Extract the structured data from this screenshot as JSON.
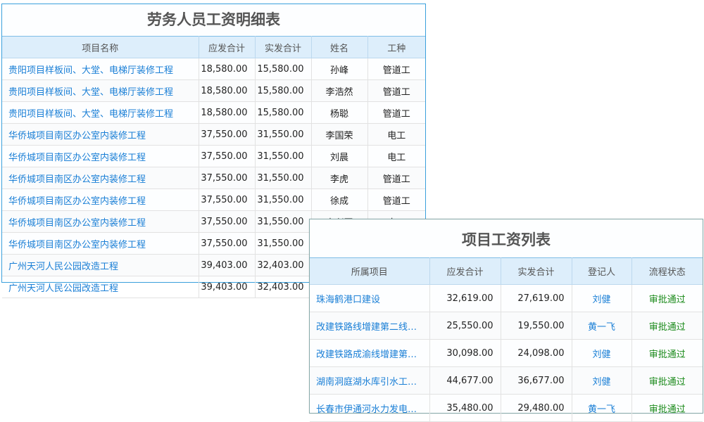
{
  "labor_table": {
    "title": "劳务人员工资明细表",
    "headers": [
      "项目名称",
      "应发合计",
      "实发合计",
      "姓名",
      "工种"
    ],
    "rows": [
      [
        "贵阳项目样板间、大堂、电梯厅装修工程",
        "18,580.00",
        "15,580.00",
        "孙峰",
        "管道工"
      ],
      [
        "贵阳项目样板间、大堂、电梯厅装修工程",
        "18,580.00",
        "15,580.00",
        "李浩然",
        "管道工"
      ],
      [
        "贵阳项目样板间、大堂、电梯厅装修工程",
        "18,580.00",
        "15,580.00",
        "杨聪",
        "管道工"
      ],
      [
        "华侨城项目南区办公室内装修工程",
        "37,550.00",
        "31,550.00",
        "李国荣",
        "电工"
      ],
      [
        "华侨城项目南区办公室内装修工程",
        "37,550.00",
        "31,550.00",
        "刘晨",
        "电工"
      ],
      [
        "华侨城项目南区办公室内装修工程",
        "37,550.00",
        "31,550.00",
        "李虎",
        "管道工"
      ],
      [
        "华侨城项目南区办公室内装修工程",
        "37,550.00",
        "31,550.00",
        "徐成",
        "管道工"
      ],
      [
        "华侨城项目南区办公室内装修工程",
        "37,550.00",
        "31,550.00",
        "李兴国",
        "电工"
      ],
      [
        "华侨城项目南区办公室内装修工程",
        "37,550.00",
        "31,550.00",
        "",
        ""
      ],
      [
        "广州天河人民公园改造工程",
        "39,403.00",
        "32,403.00",
        "",
        ""
      ],
      [
        "广州天河人民公园改造工程",
        "39,403.00",
        "32,403.00",
        "",
        ""
      ]
    ]
  },
  "project_table": {
    "title": "项目工资列表",
    "headers": [
      "所属项目",
      "应发合计",
      "实发合计",
      "登记人",
      "流程状态"
    ],
    "rows": [
      [
        "珠海鹤港口建设",
        "32,619.00",
        "27,619.00",
        "刘健",
        "审批通过"
      ],
      [
        "改建铁路线增建第二线…",
        "25,550.00",
        "19,550.00",
        "黄一飞",
        "审批通过"
      ],
      [
        "改建铁路成渝线增建第…",
        "30,098.00",
        "24,098.00",
        "刘健",
        "审批通过"
      ],
      [
        "湖南洞庭湖水库引水工…",
        "44,677.00",
        "36,677.00",
        "刘健",
        "审批通过"
      ],
      [
        "长春市伊通河水力发电…",
        "35,480.00",
        "29,480.00",
        "黄一飞",
        "审批通过"
      ]
    ]
  },
  "colors": {
    "link": "#1a7fd6",
    "status_approved": "#1a8a1a",
    "header_bg": "#ddeefb",
    "border": "#3aa0dc"
  }
}
